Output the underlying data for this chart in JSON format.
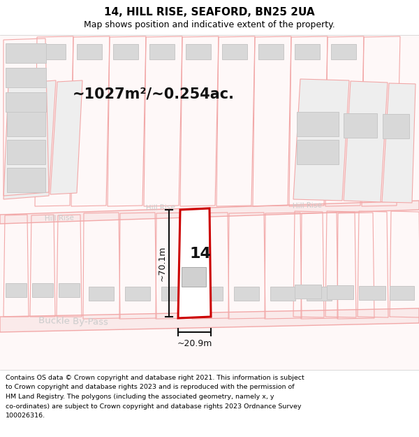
{
  "title": "14, HILL RISE, SEAFORD, BN25 2UA",
  "subtitle": "Map shows position and indicative extent of the property.",
  "footer_lines": [
    "Contains OS data © Crown copyright and database right 2021. This information is subject",
    "to Crown copyright and database rights 2023 and is reproduced with the permission of",
    "HM Land Registry. The polygons (including the associated geometry, namely x, y",
    "co-ordinates) are subject to Crown copyright and database rights 2023 Ordnance Survey",
    "100026316."
  ],
  "area_label": "~1027m²/~0.254ac.",
  "number_label": "14",
  "dim_height": "~70.1m",
  "dim_width": "~20.9m",
  "street_label_bypass": "Buckle By-Pass",
  "background_color": "#ffffff",
  "plot_border_color": "#cc0000",
  "map_line_color": "#f2a8a8",
  "title_color": "#000000",
  "footer_color": "#000000",
  "dim_color": "#111111",
  "label_color": "#111111",
  "street_label_color": "#cccccc",
  "building_edge": "#c8c8c8",
  "building_fill": "#d8d8d8"
}
